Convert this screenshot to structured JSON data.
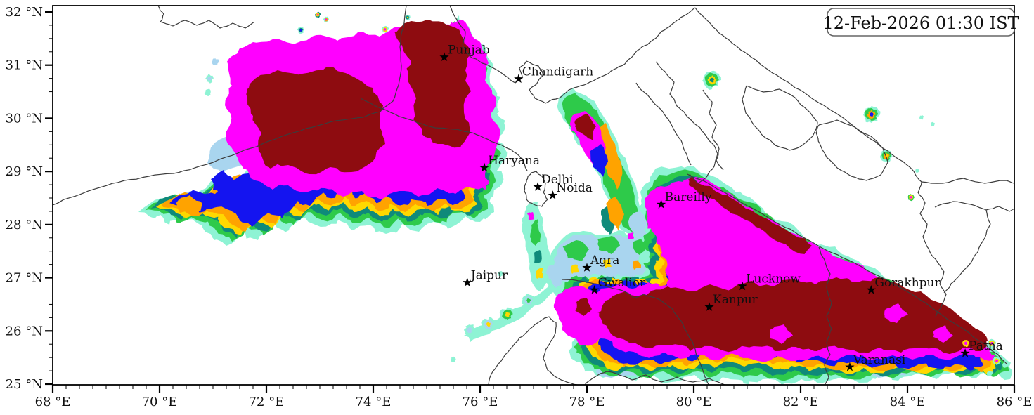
{
  "timestamp": {
    "label": "12-Feb-2026 01:30 IST"
  },
  "axes": {
    "x_ticks": [
      {
        "value": 68,
        "label": "68 °E"
      },
      {
        "value": 70,
        "label": "70 °E"
      },
      {
        "value": 72,
        "label": "72 °E"
      },
      {
        "value": 74,
        "label": "74 °E"
      },
      {
        "value": 76,
        "label": "76 °E"
      },
      {
        "value": 78,
        "label": "78 °E"
      },
      {
        "value": 80,
        "label": "80 °E"
      },
      {
        "value": 82,
        "label": "82 °E"
      },
      {
        "value": 84,
        "label": "84 °E"
      },
      {
        "value": 86,
        "label": "86 °E"
      }
    ],
    "y_ticks": [
      {
        "value": 32,
        "label": "32 °N"
      },
      {
        "value": 31,
        "label": "31 °N"
      },
      {
        "value": 30,
        "label": "30 °N"
      },
      {
        "value": 29,
        "label": "29 °N"
      },
      {
        "value": 28,
        "label": "28 °N"
      },
      {
        "value": 27,
        "label": "27 °N"
      },
      {
        "value": 26,
        "label": "26 °N"
      },
      {
        "value": 25,
        "label": "25 °N"
      }
    ]
  },
  "cities": [
    {
      "name": "Punjab",
      "lon": 75.33,
      "lat": 31.15
    },
    {
      "name": "Chandigarh",
      "lon": 76.72,
      "lat": 30.74
    },
    {
      "name": "Haryana",
      "lon": 76.08,
      "lat": 29.07
    },
    {
      "name": "Delhi",
      "lon": 77.08,
      "lat": 28.71
    },
    {
      "name": "Noida",
      "lon": 77.36,
      "lat": 28.55
    },
    {
      "name": "Bareilly",
      "lon": 79.39,
      "lat": 28.38
    },
    {
      "name": "Jaipur",
      "lon": 75.76,
      "lat": 26.91
    },
    {
      "name": "Agra",
      "lon": 78.0,
      "lat": 27.19
    },
    {
      "name": "Gwalior",
      "lon": 78.14,
      "lat": 26.77
    },
    {
      "name": "Kanpur",
      "lon": 80.29,
      "lat": 26.45
    },
    {
      "name": "Lucknow",
      "lon": 80.91,
      "lat": 26.84
    },
    {
      "name": "Gorakhpur",
      "lon": 83.32,
      "lat": 26.77
    },
    {
      "name": "Varanasi",
      "lon": 82.92,
      "lat": 25.32
    },
    {
      "name": "Patna",
      "lon": 85.08,
      "lat": 25.58
    }
  ],
  "palette": [
    {
      "name": "level-1-pale-cyan",
      "color": "#8ef3d4"
    },
    {
      "name": "level-2-light-blue",
      "color": "#a9d5ef"
    },
    {
      "name": "level-3-green",
      "color": "#2eca4a"
    },
    {
      "name": "level-4-teal",
      "color": "#0f8a7a"
    },
    {
      "name": "level-5-yellow",
      "color": "#ffd800"
    },
    {
      "name": "level-6-orange",
      "color": "#ffa300"
    },
    {
      "name": "level-7-blue",
      "color": "#1414f0"
    },
    {
      "name": "level-8-magenta",
      "color": "#ff00ff"
    },
    {
      "name": "level-9-dark-red",
      "color": "#8e0c10"
    }
  ],
  "colors": {
    "boundary": "#3c3c3c",
    "frame": "#000000",
    "label": "#101010",
    "background": "#ffffff"
  }
}
